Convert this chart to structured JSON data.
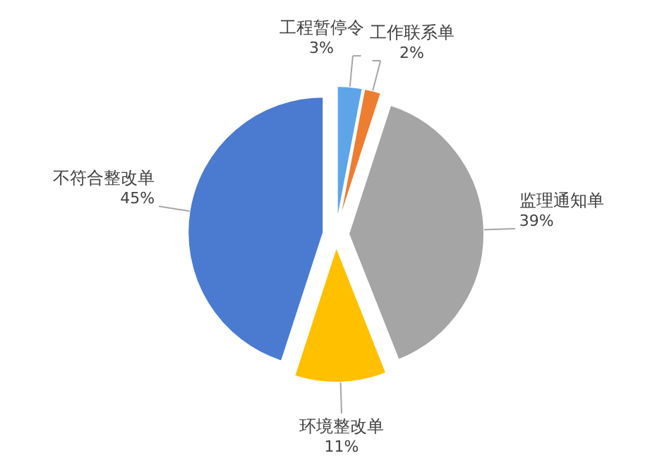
{
  "chart_data": {
    "type": "pie",
    "categories": [
      "工程暂停令",
      "工作联系单",
      "监理通知单",
      "环境整改单",
      "不符合整改单"
    ],
    "values": [
      3,
      2,
      39,
      11,
      45
    ],
    "value_labels": [
      "3%",
      "2%",
      "39%",
      "11%",
      "45%"
    ],
    "colors": [
      "#5ea5e8",
      "#ed7d31",
      "#a5a5a5",
      "#ffc000",
      "#4a7bd0"
    ]
  }
}
